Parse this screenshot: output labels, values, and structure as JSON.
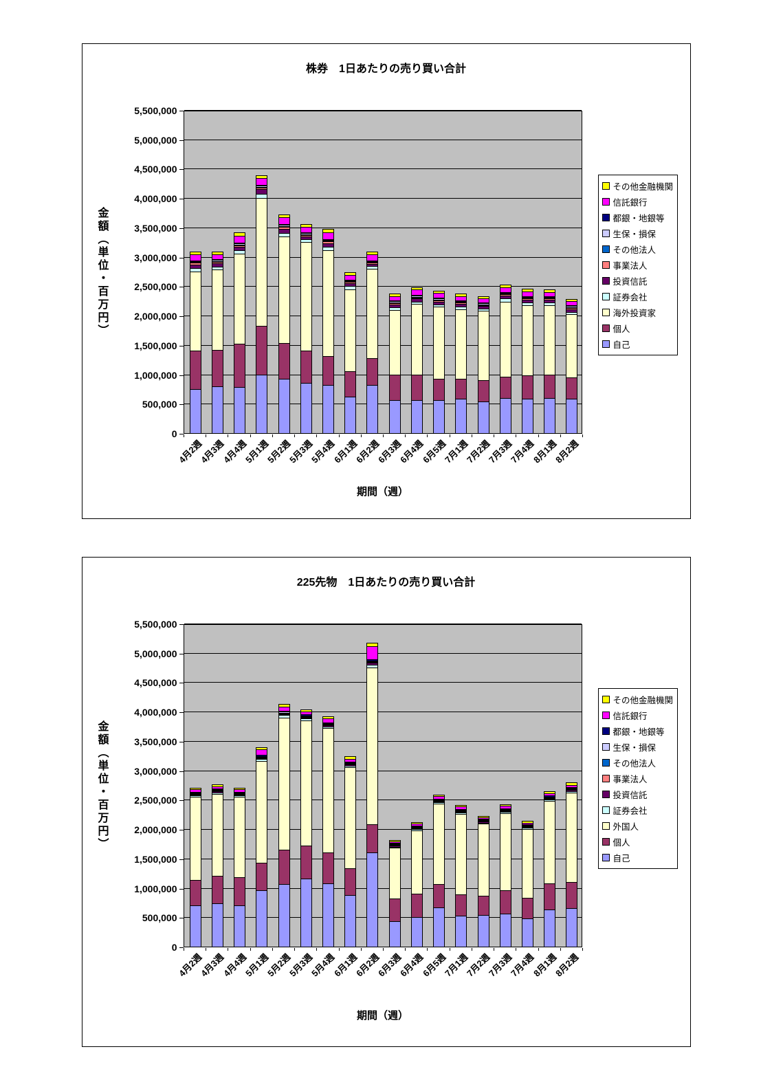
{
  "page": {
    "background": "#FFFFFF"
  },
  "chart_data": [
    {
      "type": "bar",
      "stacked": true,
      "title": "株券　1日あたりの売り買い合計",
      "y_axis_title": "金額（単位・百万円）",
      "x_axis_title": "期間（週）",
      "y_max": 5500000,
      "y_step": 500000,
      "plot_background": "#C0C0C0",
      "grid": true,
      "legend_position": "right",
      "categories": [
        "4月2週",
        "4月3週",
        "4月4週",
        "5月1週",
        "5月2週",
        "5月3週",
        "5月4週",
        "6月1週",
        "6月2週",
        "6月3週",
        "6月4週",
        "6月5週",
        "7月1週",
        "7月2週",
        "7月3週",
        "7月4週",
        "8月1週",
        "8月2週"
      ],
      "series": [
        {
          "name": "自己",
          "color": "#9999FF",
          "values": [
            750000,
            800000,
            780000,
            1000000,
            920000,
            850000,
            820000,
            620000,
            820000,
            560000,
            560000,
            560000,
            580000,
            540000,
            600000,
            580000,
            600000,
            590000
          ]
        },
        {
          "name": "個人",
          "color": "#993366",
          "values": [
            650000,
            620000,
            740000,
            820000,
            610000,
            550000,
            490000,
            430000,
            460000,
            440000,
            440000,
            370000,
            350000,
            360000,
            360000,
            400000,
            400000,
            360000
          ]
        },
        {
          "name": "海外投資家",
          "color": "#FFFFCC",
          "values": [
            1350000,
            1360000,
            1530000,
            2180000,
            1820000,
            1850000,
            1800000,
            1400000,
            1520000,
            1100000,
            1200000,
            1220000,
            1180000,
            1180000,
            1280000,
            1200000,
            1180000,
            1070000
          ]
        },
        {
          "name": "証券会社",
          "color": "#CCFFFF",
          "values": [
            60000,
            50000,
            60000,
            70000,
            60000,
            50000,
            60000,
            50000,
            40000,
            40000,
            40000,
            40000,
            40000,
            40000,
            50000,
            40000,
            40000,
            40000
          ]
        },
        {
          "name": "投資信託",
          "color": "#660066",
          "values": [
            60000,
            60000,
            60000,
            80000,
            70000,
            50000,
            60000,
            50000,
            40000,
            50000,
            50000,
            50000,
            50000,
            40000,
            50000,
            50000,
            50000,
            50000
          ]
        },
        {
          "name": "事業法人",
          "color": "#FF8080",
          "values": [
            30000,
            30000,
            30000,
            30000,
            30000,
            20000,
            30000,
            20000,
            20000,
            20000,
            20000,
            20000,
            20000,
            20000,
            20000,
            20000,
            20000,
            20000
          ]
        },
        {
          "name": "その他法人",
          "color": "#0066CC",
          "values": [
            10000,
            10000,
            10000,
            10000,
            10000,
            10000,
            10000,
            10000,
            10000,
            10000,
            10000,
            10000,
            10000,
            10000,
            10000,
            10000,
            10000,
            10000
          ]
        },
        {
          "name": "生保・損保",
          "color": "#CCCCFF",
          "values": [
            20000,
            20000,
            20000,
            20000,
            20000,
            20000,
            20000,
            20000,
            20000,
            20000,
            20000,
            20000,
            20000,
            20000,
            20000,
            20000,
            20000,
            20000
          ]
        },
        {
          "name": "都銀・地銀等",
          "color": "#000080",
          "values": [
            10000,
            10000,
            10000,
            10000,
            10000,
            10000,
            10000,
            10000,
            10000,
            10000,
            10000,
            10000,
            10000,
            10000,
            10000,
            10000,
            10000,
            10000
          ]
        },
        {
          "name": "信託銀行",
          "color": "#FF00FF",
          "values": [
            100000,
            80000,
            120000,
            120000,
            120000,
            100000,
            120000,
            80000,
            100000,
            80000,
            90000,
            80000,
            70000,
            70000,
            80000,
            80000,
            70000,
            70000
          ]
        },
        {
          "name": "その他金融機関",
          "color": "#FFFF00",
          "values": [
            40000,
            30000,
            40000,
            30000,
            40000,
            30000,
            40000,
            30000,
            30000,
            30000,
            30000,
            30000,
            30000,
            30000,
            30000,
            30000,
            30000,
            30000
          ]
        }
      ]
    },
    {
      "type": "bar",
      "stacked": true,
      "title": "225先物　1日あたりの売り買い合計",
      "y_axis_title": "金額（単位・百万円）",
      "x_axis_title": "期間（週）",
      "y_max": 5500000,
      "y_step": 500000,
      "plot_background": "#C0C0C0",
      "grid": true,
      "legend_position": "right",
      "categories": [
        "4月2週",
        "4月3週",
        "4月4週",
        "5月1週",
        "5月2週",
        "5月3週",
        "5月4週",
        "6月1週",
        "6月2週",
        "6月3週",
        "6月4週",
        "6月5週",
        "7月1週",
        "7月2週",
        "7月3週",
        "7月4週",
        "8月1週",
        "8月2週"
      ],
      "series": [
        {
          "name": "自己",
          "color": "#9999FF",
          "values": [
            700000,
            740000,
            700000,
            960000,
            1070000,
            1160000,
            1080000,
            880000,
            1600000,
            430000,
            500000,
            670000,
            530000,
            540000,
            560000,
            480000,
            630000,
            660000
          ]
        },
        {
          "name": "個人",
          "color": "#993366",
          "values": [
            430000,
            460000,
            480000,
            470000,
            580000,
            560000,
            520000,
            460000,
            480000,
            390000,
            400000,
            390000,
            360000,
            330000,
            400000,
            350000,
            450000,
            440000
          ]
        },
        {
          "name": "外国人",
          "color": "#FFFFCC",
          "values": [
            1420000,
            1400000,
            1370000,
            1730000,
            2250000,
            2130000,
            2120000,
            1710000,
            2670000,
            860000,
            1080000,
            1370000,
            1370000,
            1220000,
            1310000,
            1170000,
            1400000,
            1520000
          ]
        },
        {
          "name": "証券会社",
          "color": "#CCFFFF",
          "values": [
            20000,
            20000,
            20000,
            30000,
            40000,
            30000,
            30000,
            30000,
            50000,
            20000,
            20000,
            25000,
            20000,
            20000,
            20000,
            20000,
            25000,
            30000
          ]
        },
        {
          "name": "投資信託",
          "color": "#660066",
          "values": [
            20000,
            20000,
            15000,
            20000,
            20000,
            20000,
            20000,
            20000,
            30000,
            15000,
            15000,
            15000,
            15000,
            15000,
            15000,
            15000,
            15000,
            15000
          ]
        },
        {
          "name": "事業法人",
          "color": "#FF8080",
          "values": [
            5000,
            5000,
            5000,
            5000,
            5000,
            5000,
            5000,
            5000,
            5000,
            5000,
            5000,
            5000,
            5000,
            5000,
            5000,
            5000,
            5000,
            5000
          ]
        },
        {
          "name": "その他法人",
          "color": "#0066CC",
          "values": [
            5000,
            5000,
            5000,
            5000,
            5000,
            5000,
            5000,
            5000,
            5000,
            5000,
            5000,
            5000,
            5000,
            5000,
            5000,
            5000,
            5000,
            5000
          ]
        },
        {
          "name": "生保・損保",
          "color": "#CCCCFF",
          "values": [
            10000,
            10000,
            10000,
            10000,
            15000,
            10000,
            10000,
            10000,
            15000,
            10000,
            10000,
            10000,
            10000,
            10000,
            10000,
            10000,
            10000,
            10000
          ]
        },
        {
          "name": "都銀・地銀等",
          "color": "#000080",
          "values": [
            10000,
            15000,
            15000,
            15000,
            20000,
            15000,
            15000,
            15000,
            20000,
            10000,
            10000,
            15000,
            15000,
            10000,
            15000,
            10000,
            15000,
            15000
          ]
        },
        {
          "name": "信託銀行",
          "color": "#FF00FF",
          "values": [
            40000,
            40000,
            40000,
            100000,
            70000,
            50000,
            60000,
            50000,
            230000,
            30000,
            30000,
            40000,
            40000,
            30000,
            40000,
            30000,
            40000,
            40000
          ]
        },
        {
          "name": "その他金融機関",
          "color": "#FFFF00",
          "values": [
            20000,
            20000,
            20000,
            20000,
            30000,
            30000,
            30000,
            25000,
            40000,
            15000,
            15000,
            20000,
            20000,
            15000,
            20000,
            15000,
            20000,
            25000
          ]
        }
      ]
    }
  ]
}
